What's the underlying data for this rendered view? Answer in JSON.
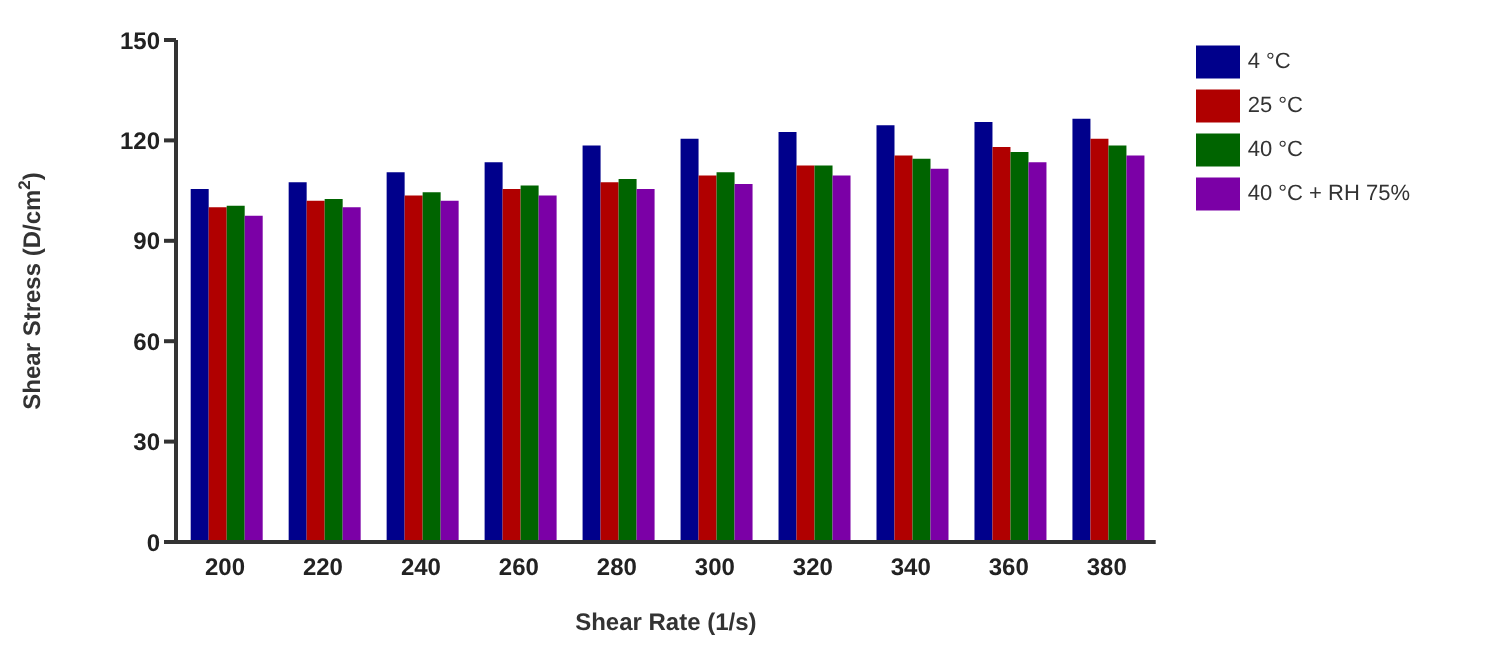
{
  "chart_data": {
    "type": "bar",
    "xlabel": "Shear Rate (1/s)",
    "ylabel": "Shear Stress (D/cm$^{2}$)",
    "categories": [
      "200",
      "220",
      "240",
      "260",
      "280",
      "300",
      "320",
      "340",
      "360",
      "380"
    ],
    "series": [
      {
        "name": "4 °C",
        "color": "#00008b",
        "values": [
          105.5,
          107.5,
          110.5,
          113.5,
          118.5,
          120.5,
          122.5,
          124.5,
          125.5,
          126.5
        ]
      },
      {
        "name": "25 °C",
        "color": "#b00000",
        "values": [
          100,
          102,
          103.5,
          105.5,
          107.5,
          109.5,
          112.5,
          115.5,
          118,
          120.5
        ]
      },
      {
        "name": "40 °C",
        "color": "#006400",
        "values": [
          100.5,
          102.5,
          104.5,
          106.5,
          108.5,
          110.5,
          112.5,
          114.5,
          116.5,
          118.5
        ]
      },
      {
        "name": "40 °C + RH 75%",
        "color": "#7b00a6",
        "values": [
          97.5,
          100,
          102,
          103.5,
          105.5,
          107,
          109.5,
          111.5,
          113.5,
          115.5
        ]
      }
    ],
    "ylim": [
      0,
      150
    ],
    "yticks": [
      0,
      30,
      60,
      90,
      120,
      150
    ],
    "grid": false,
    "legend": "top right"
  }
}
